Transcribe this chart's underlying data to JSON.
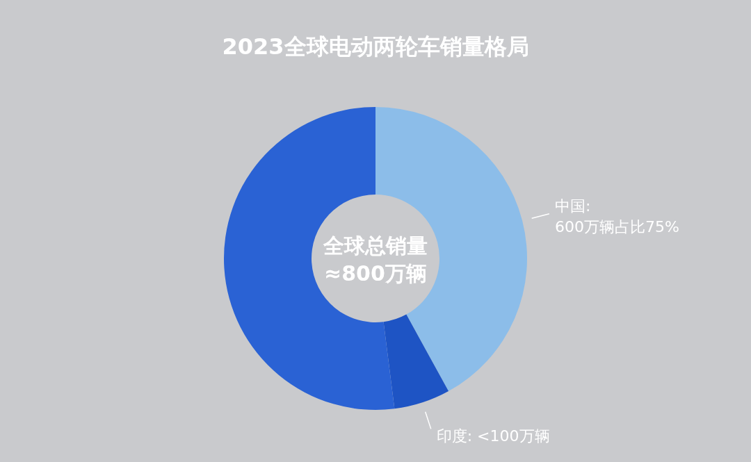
{
  "chart_data": {
    "type": "donut",
    "title": "2023全球电动两轮车销量格局",
    "categories": [
      "中国: 600万辆占比75%",
      "印度: <100万辆",
      null
    ],
    "values": [
      42,
      6,
      52
    ],
    "colors": [
      "#8cbde9",
      "#1e54c4",
      "#2a62d4"
    ],
    "annotations": [
      "全球总销量",
      "≈800万辆"
    ],
    "legend": false
  }
}
